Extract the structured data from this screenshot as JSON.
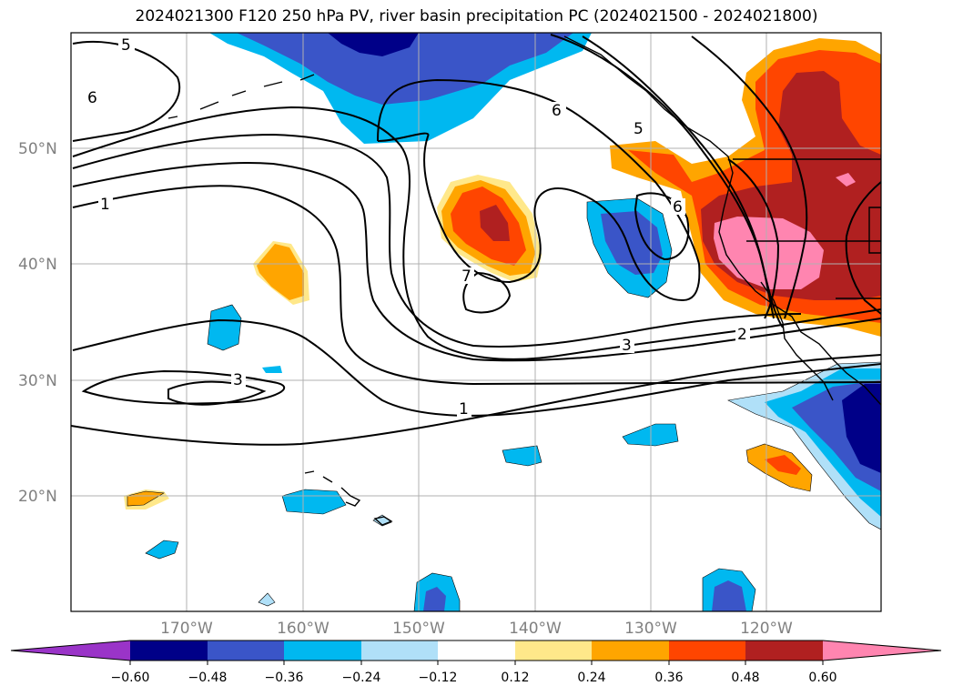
{
  "title": "2024021300 F120 250 hPa PV, river basin precipitation PC (2024021500 - 2024021800)",
  "map": {
    "lat_labels": [
      "50°N",
      "40°N",
      "30°N",
      "20°N"
    ],
    "lon_labels": [
      "170°W",
      "160°W",
      "150°W",
      "140°W",
      "130°W",
      "120°W"
    ],
    "contour_labels": [
      "5",
      "6",
      "1",
      "6",
      "5",
      "6",
      "7",
      "3",
      "2",
      "3",
      "1"
    ]
  },
  "colorbar": {
    "ticks": [
      "−0.60",
      "−0.48",
      "−0.36",
      "−0.24",
      "−0.12",
      "0.12",
      "0.24",
      "0.36",
      "0.48",
      "0.60"
    ],
    "colors": [
      "#9a34c8",
      "#000088",
      "#3a55c8",
      "#00b8f0",
      "#b0e0f8",
      "#ffffff",
      "#ffe88a",
      "#ffa500",
      "#ff4500",
      "#b02020",
      "#ff85b0"
    ]
  }
}
